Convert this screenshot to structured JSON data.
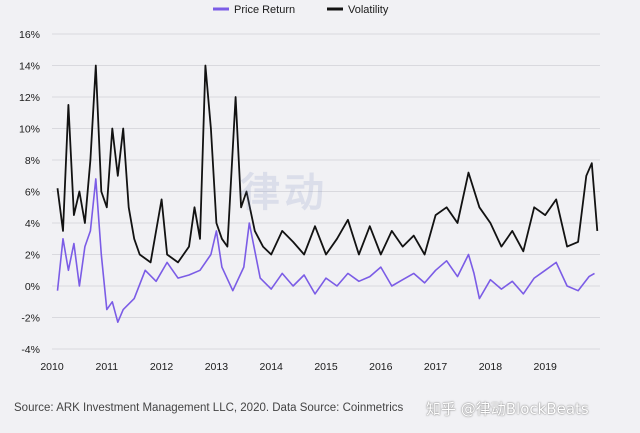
{
  "chart_data": {
    "type": "line",
    "title": "",
    "xlabel": "",
    "ylabel": "",
    "ylim": [
      -0.04,
      0.16
    ],
    "xlim": [
      2010,
      2020
    ],
    "y_ticks": [
      "16%",
      "14%",
      "12%",
      "10%",
      "8%",
      "6%",
      "4%",
      "2%",
      "0%",
      "-2%",
      "-4%"
    ],
    "x_ticks": [
      "2010",
      "2011",
      "2012",
      "2013",
      "2014",
      "2015",
      "2016",
      "2017",
      "2018",
      "2019"
    ],
    "grid": "horizontal",
    "legend_position": "top-center",
    "series": [
      {
        "name": "Price Return",
        "color": "#7b5ce6",
        "x": [
          2010.1,
          2010.2,
          2010.3,
          2010.4,
          2010.5,
          2010.6,
          2010.7,
          2010.8,
          2010.9,
          2011.0,
          2011.1,
          2011.2,
          2011.3,
          2011.5,
          2011.7,
          2011.9,
          2012.1,
          2012.3,
          2012.5,
          2012.7,
          2012.9,
          2013.0,
          2013.1,
          2013.3,
          2013.5,
          2013.6,
          2013.8,
          2014.0,
          2014.2,
          2014.4,
          2014.6,
          2014.8,
          2015.0,
          2015.2,
          2015.4,
          2015.6,
          2015.8,
          2016.0,
          2016.2,
          2016.4,
          2016.6,
          2016.8,
          2017.0,
          2017.2,
          2017.4,
          2017.6,
          2017.7,
          2017.8,
          2018.0,
          2018.2,
          2018.4,
          2018.6,
          2018.8,
          2019.0,
          2019.2,
          2019.4,
          2019.6,
          2019.8,
          2019.9
        ],
        "values": [
          -0.003,
          0.03,
          0.01,
          0.027,
          0.0,
          0.025,
          0.035,
          0.068,
          0.02,
          -0.015,
          -0.01,
          -0.023,
          -0.015,
          -0.008,
          0.01,
          0.003,
          0.015,
          0.005,
          0.007,
          0.01,
          0.02,
          0.035,
          0.012,
          -0.003,
          0.012,
          0.04,
          0.005,
          -0.002,
          0.008,
          0.0,
          0.007,
          -0.005,
          0.005,
          0.0,
          0.008,
          0.003,
          0.006,
          0.012,
          0.0,
          0.004,
          0.008,
          0.002,
          0.01,
          0.016,
          0.006,
          0.02,
          0.008,
          -0.008,
          0.004,
          -0.002,
          0.003,
          -0.005,
          0.005,
          0.01,
          0.015,
          0.0,
          -0.003,
          0.006,
          0.008
        ]
      },
      {
        "name": "Volatility",
        "color": "#121212",
        "x": [
          2010.1,
          2010.2,
          2010.3,
          2010.4,
          2010.5,
          2010.6,
          2010.7,
          2010.8,
          2010.9,
          2011.0,
          2011.1,
          2011.2,
          2011.3,
          2011.4,
          2011.5,
          2011.6,
          2011.8,
          2012.0,
          2012.1,
          2012.3,
          2012.5,
          2012.6,
          2012.7,
          2012.8,
          2012.9,
          2013.0,
          2013.1,
          2013.2,
          2013.35,
          2013.45,
          2013.55,
          2013.7,
          2013.85,
          2014.0,
          2014.2,
          2014.4,
          2014.6,
          2014.8,
          2015.0,
          2015.2,
          2015.4,
          2015.6,
          2015.8,
          2016.0,
          2016.2,
          2016.4,
          2016.6,
          2016.8,
          2017.0,
          2017.2,
          2017.4,
          2017.6,
          2017.8,
          2018.0,
          2018.2,
          2018.4,
          2018.6,
          2018.8,
          2019.0,
          2019.2,
          2019.4,
          2019.6,
          2019.75,
          2019.85,
          2019.95
        ],
        "values": [
          0.062,
          0.035,
          0.115,
          0.045,
          0.06,
          0.04,
          0.08,
          0.14,
          0.06,
          0.05,
          0.1,
          0.07,
          0.1,
          0.05,
          0.03,
          0.02,
          0.015,
          0.055,
          0.02,
          0.015,
          0.025,
          0.05,
          0.03,
          0.14,
          0.1,
          0.04,
          0.03,
          0.025,
          0.12,
          0.05,
          0.06,
          0.035,
          0.025,
          0.02,
          0.035,
          0.028,
          0.02,
          0.038,
          0.02,
          0.03,
          0.042,
          0.02,
          0.038,
          0.02,
          0.035,
          0.025,
          0.032,
          0.02,
          0.045,
          0.05,
          0.04,
          0.072,
          0.05,
          0.04,
          0.025,
          0.035,
          0.022,
          0.05,
          0.045,
          0.055,
          0.025,
          0.028,
          0.07,
          0.078,
          0.035
        ]
      }
    ]
  },
  "source": "Source: ARK Investment Management LLC, 2020. Data Source: Coinmetrics",
  "credit": "知乎 @律动BlockBeats",
  "watermark": "律动"
}
